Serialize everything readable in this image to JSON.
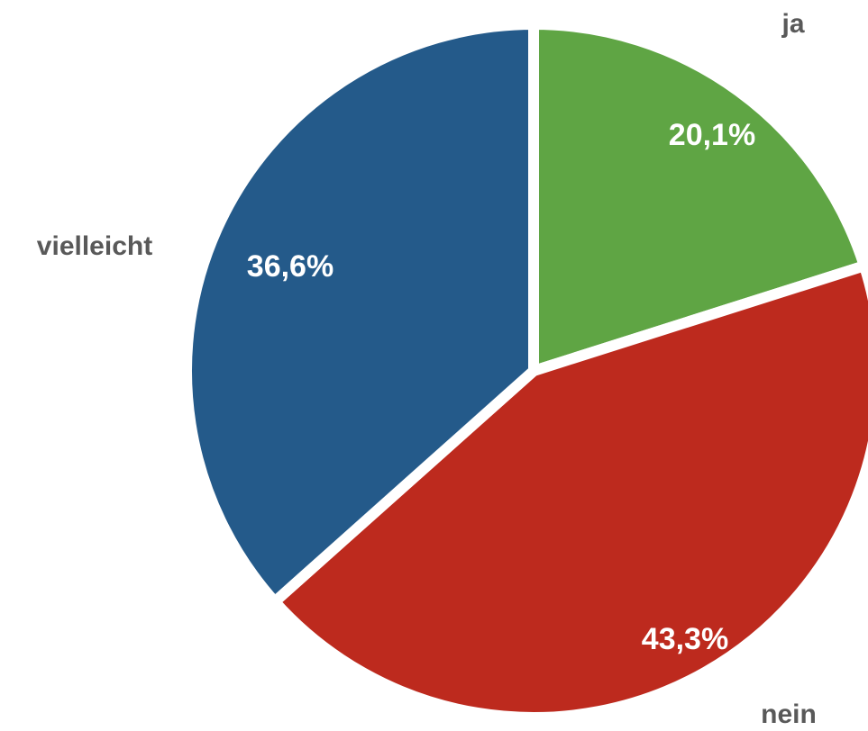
{
  "chart_data": {
    "type": "pie",
    "categories": [
      "ja",
      "nein",
      "vielleicht"
    ],
    "values": [
      20.1,
      43.3,
      36.6
    ],
    "value_labels": [
      "20,1%",
      "43,3%",
      "36,6%"
    ],
    "colors": [
      "#5fa544",
      "#bd2a1e",
      "#245a8a"
    ]
  }
}
